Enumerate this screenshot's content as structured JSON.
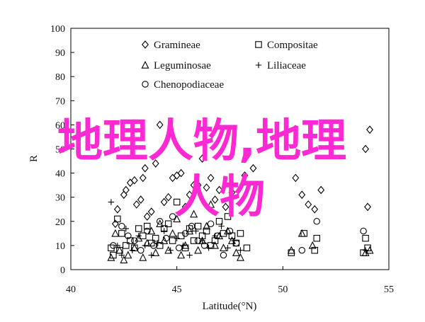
{
  "chart_data": {
    "type": "scatter",
    "xlabel": "Latitude(°N)",
    "ylabel": "R",
    "xlim": [
      40,
      55
    ],
    "ylim": [
      0,
      100
    ],
    "xticks": [
      40,
      45,
      50,
      55
    ],
    "yticks": [
      0,
      10,
      20,
      30,
      40,
      50,
      60,
      70,
      80,
      90,
      100
    ],
    "grid": false,
    "legend_position": "top",
    "series": [
      {
        "name": "Gramineae",
        "marker": "diamond",
        "points": [
          [
            42.1,
            19
          ],
          [
            42.2,
            25
          ],
          [
            42.5,
            31
          ],
          [
            42.6,
            33
          ],
          [
            42.8,
            36
          ],
          [
            43.0,
            37
          ],
          [
            43.1,
            27
          ],
          [
            43.3,
            29
          ],
          [
            43.4,
            38
          ],
          [
            43.5,
            42
          ],
          [
            43.6,
            22
          ],
          [
            43.8,
            24
          ],
          [
            44.0,
            44
          ],
          [
            44.2,
            60
          ],
          [
            44.4,
            28
          ],
          [
            44.6,
            30
          ],
          [
            44.8,
            38
          ],
          [
            45.0,
            39
          ],
          [
            45.2,
            40
          ],
          [
            45.4,
            26
          ],
          [
            45.6,
            31
          ],
          [
            45.8,
            35
          ],
          [
            46.0,
            35
          ],
          [
            46.2,
            46
          ],
          [
            46.4,
            34
          ],
          [
            46.6,
            38
          ],
          [
            46.8,
            29
          ],
          [
            47.0,
            33
          ],
          [
            47.3,
            26
          ],
          [
            47.6,
            32
          ],
          [
            48.2,
            39
          ],
          [
            48.6,
            42
          ],
          [
            50.6,
            38
          ],
          [
            50.9,
            31
          ],
          [
            51.2,
            27
          ],
          [
            51.5,
            25
          ],
          [
            51.8,
            33
          ],
          [
            54.0,
            26
          ],
          [
            53.9,
            50
          ],
          [
            54.1,
            58
          ]
        ]
      },
      {
        "name": "Compositae",
        "marker": "square",
        "points": [
          [
            41.9,
            9
          ],
          [
            42.0,
            6
          ],
          [
            42.2,
            21
          ],
          [
            42.3,
            8
          ],
          [
            42.4,
            15
          ],
          [
            42.6,
            10
          ],
          [
            42.8,
            12
          ],
          [
            43.0,
            9
          ],
          [
            43.2,
            17
          ],
          [
            43.4,
            14
          ],
          [
            43.6,
            18
          ],
          [
            43.8,
            11
          ],
          [
            44.0,
            13
          ],
          [
            44.2,
            10
          ],
          [
            44.4,
            17
          ],
          [
            44.6,
            19
          ],
          [
            44.8,
            12
          ],
          [
            45.0,
            28
          ],
          [
            45.2,
            14
          ],
          [
            45.4,
            9
          ],
          [
            45.6,
            17
          ],
          [
            45.8,
            12
          ],
          [
            46.0,
            18
          ],
          [
            46.2,
            14
          ],
          [
            46.4,
            16
          ],
          [
            46.6,
            10
          ],
          [
            46.8,
            12
          ],
          [
            47.0,
            20
          ],
          [
            47.2,
            15
          ],
          [
            47.4,
            22
          ],
          [
            47.6,
            14
          ],
          [
            47.8,
            11
          ],
          [
            48.0,
            15
          ],
          [
            48.3,
            9
          ],
          [
            50.4,
            7
          ],
          [
            51.0,
            15
          ],
          [
            51.6,
            13
          ],
          [
            51.5,
            8
          ],
          [
            53.8,
            7
          ],
          [
            54.0,
            9
          ],
          [
            53.9,
            13
          ]
        ]
      },
      {
        "name": "Leguminosae",
        "marker": "triangle",
        "points": [
          [
            41.9,
            5
          ],
          [
            42.1,
            15
          ],
          [
            42.3,
            8
          ],
          [
            42.5,
            4
          ],
          [
            42.7,
            6
          ],
          [
            43.0,
            9
          ],
          [
            43.2,
            13
          ],
          [
            43.4,
            5
          ],
          [
            43.6,
            11
          ],
          [
            43.8,
            16
          ],
          [
            44.0,
            7
          ],
          [
            44.2,
            19
          ],
          [
            44.4,
            12
          ],
          [
            44.6,
            8
          ],
          [
            44.8,
            15
          ],
          [
            45.0,
            21
          ],
          [
            45.2,
            6
          ],
          [
            45.4,
            10
          ],
          [
            45.6,
            16
          ],
          [
            45.8,
            23
          ],
          [
            46.0,
            8
          ],
          [
            46.2,
            12
          ],
          [
            46.4,
            18
          ],
          [
            46.6,
            27
          ],
          [
            46.8,
            10
          ],
          [
            47.0,
            14
          ],
          [
            47.2,
            9
          ],
          [
            47.4,
            16
          ],
          [
            47.6,
            12
          ],
          [
            47.8,
            7
          ],
          [
            48.0,
            5
          ],
          [
            50.4,
            8
          ],
          [
            50.9,
            15
          ],
          [
            51.4,
            10
          ],
          [
            53.9,
            7
          ],
          [
            54.1,
            8
          ]
        ]
      },
      {
        "name": "Liliaceae",
        "marker": "plus",
        "points": [
          [
            41.9,
            28
          ],
          [
            42.2,
            10
          ],
          [
            42.4,
            6
          ],
          [
            42.6,
            17
          ],
          [
            42.9,
            8
          ],
          [
            43.2,
            14
          ],
          [
            43.5,
            10
          ],
          [
            43.8,
            6
          ],
          [
            44.1,
            11
          ],
          [
            44.4,
            16
          ],
          [
            44.7,
            8
          ],
          [
            45.0,
            13
          ],
          [
            45.3,
            10
          ],
          [
            45.6,
            6
          ],
          [
            45.9,
            16
          ],
          [
            46.2,
            12
          ],
          [
            46.5,
            9
          ],
          [
            46.8,
            14
          ],
          [
            47.1,
            18
          ],
          [
            47.4,
            9
          ],
          [
            47.7,
            12
          ],
          [
            48.0,
            8
          ],
          [
            53.9,
            8
          ]
        ]
      },
      {
        "name": "Chenopodiaceae",
        "marker": "circle",
        "points": [
          [
            42.0,
            10
          ],
          [
            42.4,
            18
          ],
          [
            42.7,
            14
          ],
          [
            43.0,
            12
          ],
          [
            43.3,
            8
          ],
          [
            43.6,
            16
          ],
          [
            43.9,
            10
          ],
          [
            44.2,
            20
          ],
          [
            44.5,
            13
          ],
          [
            44.8,
            22
          ],
          [
            45.1,
            9
          ],
          [
            45.4,
            15
          ],
          [
            45.7,
            18
          ],
          [
            46.0,
            12
          ],
          [
            46.3,
            10
          ],
          [
            46.6,
            19
          ],
          [
            46.9,
            14
          ],
          [
            47.2,
            6
          ],
          [
            47.5,
            16
          ],
          [
            47.8,
            11
          ],
          [
            50.9,
            8
          ],
          [
            51.6,
            20
          ],
          [
            53.8,
            16
          ]
        ]
      }
    ],
    "annotations": [
      {
        "text": "地理人物,地理"
      },
      {
        "text": "人物"
      }
    ]
  }
}
